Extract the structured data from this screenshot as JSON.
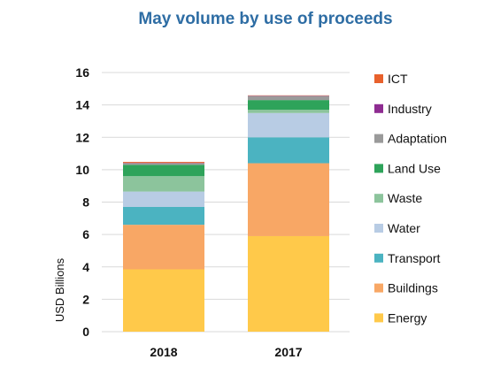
{
  "chart_data": {
    "type": "bar",
    "stacked": true,
    "title": "May volume by use of proceeds",
    "xlabel": "",
    "ylabel": "USD Billions",
    "ylim": [
      0,
      16
    ],
    "yticks": [
      0,
      2,
      4,
      6,
      8,
      10,
      12,
      14,
      16
    ],
    "grid": true,
    "legend_position": "right",
    "categories": [
      "2018",
      "2017"
    ],
    "series": [
      {
        "name": "Energy",
        "color": "#FFC94A",
        "values": [
          3.85,
          5.9
        ]
      },
      {
        "name": "Buildings",
        "color": "#F8A765",
        "values": [
          2.75,
          4.5
        ]
      },
      {
        "name": "Transport",
        "color": "#4BB3C1",
        "values": [
          1.1,
          1.6
        ]
      },
      {
        "name": "Water",
        "color": "#B8CCE4",
        "values": [
          0.95,
          1.5
        ]
      },
      {
        "name": "Waste",
        "color": "#8CC49C",
        "values": [
          0.95,
          0.2
        ]
      },
      {
        "name": "Land Use",
        "color": "#2EA35A",
        "values": [
          0.7,
          0.6
        ]
      },
      {
        "name": "Adaptation",
        "color": "#9A9A9A",
        "values": [
          0.1,
          0.25
        ]
      },
      {
        "name": "Industry",
        "color": "#8E2C91",
        "values": [
          0.02,
          0.02
        ]
      },
      {
        "name": "ICT",
        "color": "#E8612C",
        "values": [
          0.06,
          0.02
        ]
      }
    ]
  }
}
